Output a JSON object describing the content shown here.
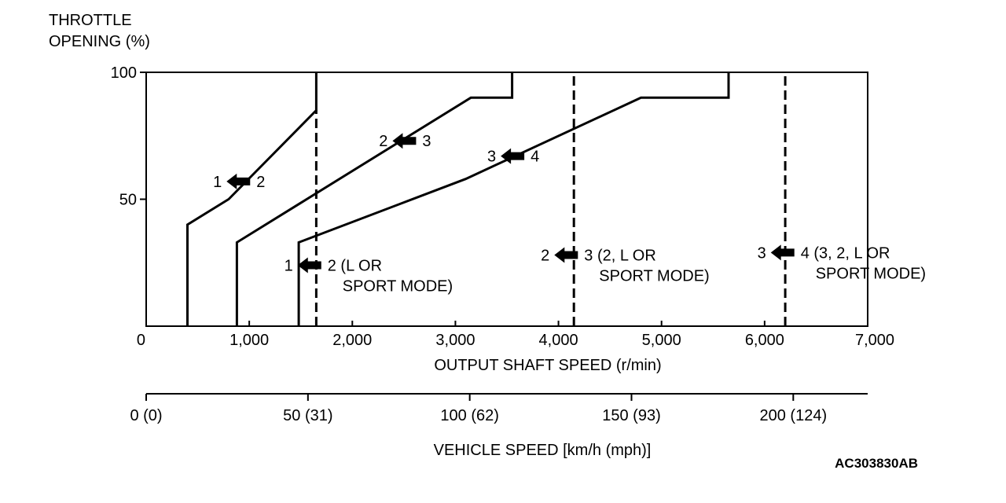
{
  "chart_data": {
    "type": "line",
    "title": "",
    "ylabel_lines": [
      "THROTTLE",
      "OPENING (%)"
    ],
    "xlabel": "OUTPUT SHAFT SPEED (r/min)",
    "secondary_axis_label": "VEHICLE SPEED [km/h (mph)]",
    "figure_id": "AC303830AB",
    "xlim": [
      0,
      7000
    ],
    "ylim": [
      0,
      100
    ],
    "x_ticks": [
      {
        "value": 0,
        "label": "0"
      },
      {
        "value": 1000,
        "label": "1,000"
      },
      {
        "value": 2000,
        "label": "2,000"
      },
      {
        "value": 3000,
        "label": "3,000"
      },
      {
        "value": 4000,
        "label": "4,000"
      },
      {
        "value": 5000,
        "label": "5,000"
      },
      {
        "value": 6000,
        "label": "6,000"
      },
      {
        "value": 7000,
        "label": "7,000"
      }
    ],
    "y_ticks": [
      {
        "value": 50,
        "label": "50"
      },
      {
        "value": 100,
        "label": "100"
      }
    ],
    "vehicle_speed_ticks": [
      {
        "value": 0,
        "label": "0 (0)"
      },
      {
        "value": 50,
        "label": "50 (31)"
      },
      {
        "value": 100,
        "label": "100 (62)"
      },
      {
        "value": 150,
        "label": "150 (93)"
      },
      {
        "value": 200,
        "label": "200 (124)"
      }
    ],
    "vehicle_speed_range": [
      0,
      223
    ],
    "series": [
      {
        "style": "solid",
        "points": [
          [
            400,
            0
          ],
          [
            400,
            40
          ],
          [
            800,
            50
          ],
          [
            1650,
            85
          ],
          [
            1650,
            100
          ]
        ]
      },
      {
        "style": "solid",
        "points": [
          [
            880,
            0
          ],
          [
            880,
            33
          ],
          [
            3150,
            90
          ],
          [
            3550,
            90
          ],
          [
            3550,
            100
          ]
        ]
      },
      {
        "style": "solid",
        "points": [
          [
            1480,
            0
          ],
          [
            1480,
            33
          ],
          [
            3100,
            58
          ],
          [
            4800,
            90
          ],
          [
            5650,
            90
          ],
          [
            5650,
            100
          ]
        ]
      },
      {
        "style": "dashed",
        "points": [
          [
            1650,
            0
          ],
          [
            1650,
            85
          ]
        ]
      },
      {
        "style": "dashed",
        "points": [
          [
            4150,
            0
          ],
          [
            4150,
            100
          ]
        ]
      },
      {
        "style": "dashed",
        "points": [
          [
            6200,
            0
          ],
          [
            6200,
            100
          ]
        ]
      }
    ],
    "annotations": [
      {
        "from": "1",
        "to": "2",
        "x": 940,
        "y": 57,
        "lines": []
      },
      {
        "from": "2",
        "to": "3",
        "x": 2550,
        "y": 73,
        "lines": []
      },
      {
        "from": "3",
        "to": "4",
        "x": 3600,
        "y": 67,
        "lines": []
      },
      {
        "from": "1",
        "to": "2 (L OR",
        "x": 1630,
        "y": 24,
        "lines": [
          "SPORT MODE)"
        ]
      },
      {
        "from": "2",
        "to": "3 (2, L OR",
        "x": 4120,
        "y": 28,
        "lines": [
          "SPORT MODE)"
        ]
      },
      {
        "from": "3",
        "to": "4 (3, 2, L OR",
        "x": 6220,
        "y": 29,
        "lines": [
          "SPORT MODE)"
        ]
      }
    ]
  }
}
